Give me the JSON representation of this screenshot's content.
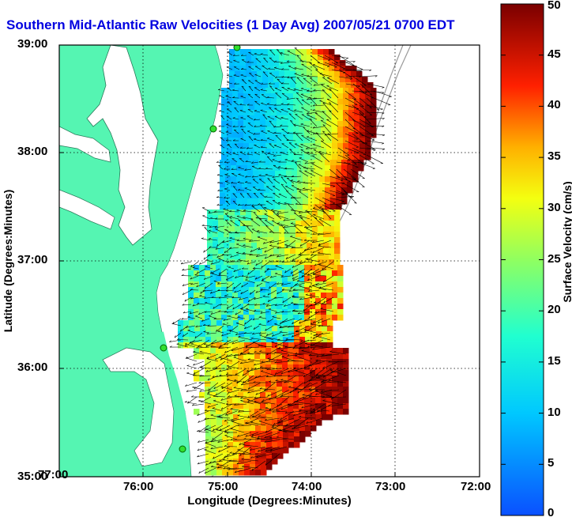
{
  "map": {
    "title": "Southern Mid-Atlantic Raw Velocities (1 Day Avg) 2007/05/21 0700 EDT",
    "xlabel": "Longitude (Degrees:Minutes)",
    "ylabel": "Latitude (Degrees:Minutes)",
    "colorbar_label": "Surface Velocity (cm/s)",
    "x_ticks": [
      "77:00",
      "76:00",
      "75:00",
      "74:00",
      "73:00",
      "72:00"
    ],
    "y_ticks": [
      "39:00",
      "38:00",
      "37:00",
      "36:00",
      "35:00"
    ],
    "colorbar_ticks": [
      "0",
      "5",
      "10",
      "15",
      "20",
      "25",
      "30",
      "35",
      "40",
      "45",
      "50"
    ],
    "colorbar_range": [
      0,
      50
    ],
    "extent": {
      "lon": [
        -77,
        -72
      ],
      "lat": [
        35,
        39
      ]
    },
    "land_color": "#55f5b2",
    "grid": "dotted",
    "station_markers": 4
  }
}
